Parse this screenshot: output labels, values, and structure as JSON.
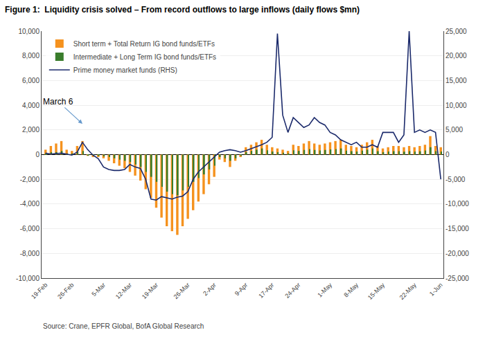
{
  "chart_data": {
    "type": "bar",
    "title": "Figure 1:  Liquidity crisis solved – From record outflows to large inflows (daily flows $mn)",
    "source": "Source: Crane, EPFR Global, BofA Global Research",
    "categories": [
      "19-Feb",
      null,
      null,
      null,
      null,
      "26-Feb",
      null,
      null,
      null,
      null,
      null,
      "5-Mar",
      null,
      null,
      null,
      null,
      "12-Mar",
      null,
      null,
      null,
      null,
      "19-Mar",
      null,
      null,
      null,
      null,
      null,
      "26-Mar",
      null,
      null,
      null,
      null,
      "2-Apr",
      null,
      null,
      null,
      null,
      null,
      "9-Apr",
      null,
      null,
      null,
      null,
      "17-Apr",
      null,
      null,
      null,
      null,
      "24-Apr",
      null,
      null,
      null,
      null,
      null,
      "1-May",
      null,
      null,
      null,
      null,
      "8-May",
      null,
      null,
      null,
      null,
      "15-May",
      null,
      null,
      null,
      null,
      null,
      "22-May",
      null,
      null,
      null,
      null,
      "1-Jun"
    ],
    "series": [
      {
        "name": "Short term + Total Return IG bond funds/ETFs",
        "type": "bar",
        "color": "#F5921E",
        "values": [
          400,
          700,
          900,
          1100,
          400,
          300,
          700,
          1100,
          -100,
          -200,
          -200,
          -300,
          -500,
          -700,
          -900,
          -1100,
          -1400,
          -1700,
          -2100,
          -2800,
          -3500,
          -4300,
          -5100,
          -5800,
          -6200,
          -6500,
          -5800,
          -5200,
          -4500,
          -3800,
          -3200,
          -2400,
          -1800,
          -400,
          -600,
          -1000,
          -500,
          -200,
          600,
          800,
          1000,
          1200,
          800,
          600,
          500,
          400,
          300,
          800,
          700,
          900,
          1100,
          900,
          800,
          900,
          1000,
          1100,
          1200,
          800,
          700,
          600,
          800,
          1000,
          1200,
          700,
          500,
          600,
          700,
          700,
          600,
          700,
          600,
          700,
          800,
          1500,
          700,
          600
        ]
      },
      {
        "name": "Intermediate + Long Term IG bond funds/ETFs",
        "type": "bar",
        "color": "#3A7D2C",
        "values": [
          100,
          200,
          200,
          300,
          100,
          100,
          200,
          300,
          -50,
          -100,
          -100,
          -150,
          -200,
          -300,
          -400,
          -500,
          -600,
          -800,
          -1000,
          -1400,
          -1800,
          -2200,
          -2600,
          -3000,
          -3200,
          -3300,
          -2900,
          -2600,
          -2200,
          -1900,
          -1600,
          -1200,
          -900,
          -200,
          -300,
          -500,
          -300,
          -100,
          200,
          300,
          400,
          500,
          350,
          250,
          200,
          150,
          100,
          350,
          300,
          380,
          450,
          380,
          330,
          380,
          420,
          450,
          500,
          320,
          280,
          250,
          320,
          400,
          500,
          280,
          200,
          250,
          280,
          280,
          240,
          280,
          250,
          270,
          330,
          600,
          280,
          250
        ]
      },
      {
        "name": "Prime money market funds (RHS)",
        "type": "line",
        "axis": "y2",
        "color": "#1B2A6B",
        "values": [
          300,
          100,
          200,
          300,
          100,
          -100,
          500,
          2500,
          1000,
          -100,
          -800,
          -2500,
          -3000,
          -3200,
          -3200,
          -3000,
          -2000,
          -2500,
          -2800,
          -5000,
          -9000,
          -9200,
          -8500,
          -8800,
          -9000,
          -8600,
          -8400,
          -7500,
          -5000,
          -3500,
          -2500,
          -1500,
          -500,
          500,
          800,
          1000,
          800,
          500,
          800,
          1200,
          1500,
          2000,
          2500,
          3500,
          24500,
          8000,
          4500,
          7500,
          6500,
          5500,
          6000,
          7500,
          6500,
          6000,
          4500,
          4000,
          3000,
          2500,
          2000,
          2500,
          1500,
          1500,
          2000,
          1500,
          4500,
          4500,
          4500,
          2500,
          4000,
          25000,
          4500,
          5000,
          4500,
          5000,
          4500,
          -5000
        ]
      }
    ],
    "ylim": [
      -10000,
      10000
    ],
    "yticks": [
      {
        "value": -10000,
        "label": "-10,000"
      },
      {
        "value": -8000,
        "label": "-8,000"
      },
      {
        "value": -6000,
        "label": "-6,000"
      },
      {
        "value": -4000,
        "label": "-4,000"
      },
      {
        "value": -2000,
        "label": "-2,000"
      },
      0,
      {
        "value": 2000,
        "label": "2,000"
      },
      {
        "value": 4000,
        "label": "4,000"
      },
      {
        "value": 6000,
        "label": "6,000"
      },
      {
        "value": 8000,
        "label": "8,000"
      },
      {
        "value": 10000,
        "label": "10,000"
      }
    ],
    "y2lim": [
      -25000,
      25000
    ],
    "y2ticks": [
      {
        "value": -25000,
        "label": "-25,000"
      },
      {
        "value": -20000,
        "label": "-20,000"
      },
      {
        "value": -15000,
        "label": "-15,000"
      },
      {
        "value": -10000,
        "label": "-10,000"
      },
      {
        "value": -5000,
        "label": "-5,000"
      },
      0,
      {
        "value": 5000,
        "label": "5,000"
      },
      {
        "value": 10000,
        "label": "10,000"
      },
      {
        "value": 15000,
        "label": "15,000"
      },
      {
        "value": 20000,
        "label": "20,000"
      },
      {
        "value": 25000,
        "label": "25,000"
      }
    ],
    "grid": true,
    "legend": "upper left",
    "annotations": [
      {
        "text": "March 6",
        "x": 7,
        "y": 2500
      }
    ]
  }
}
